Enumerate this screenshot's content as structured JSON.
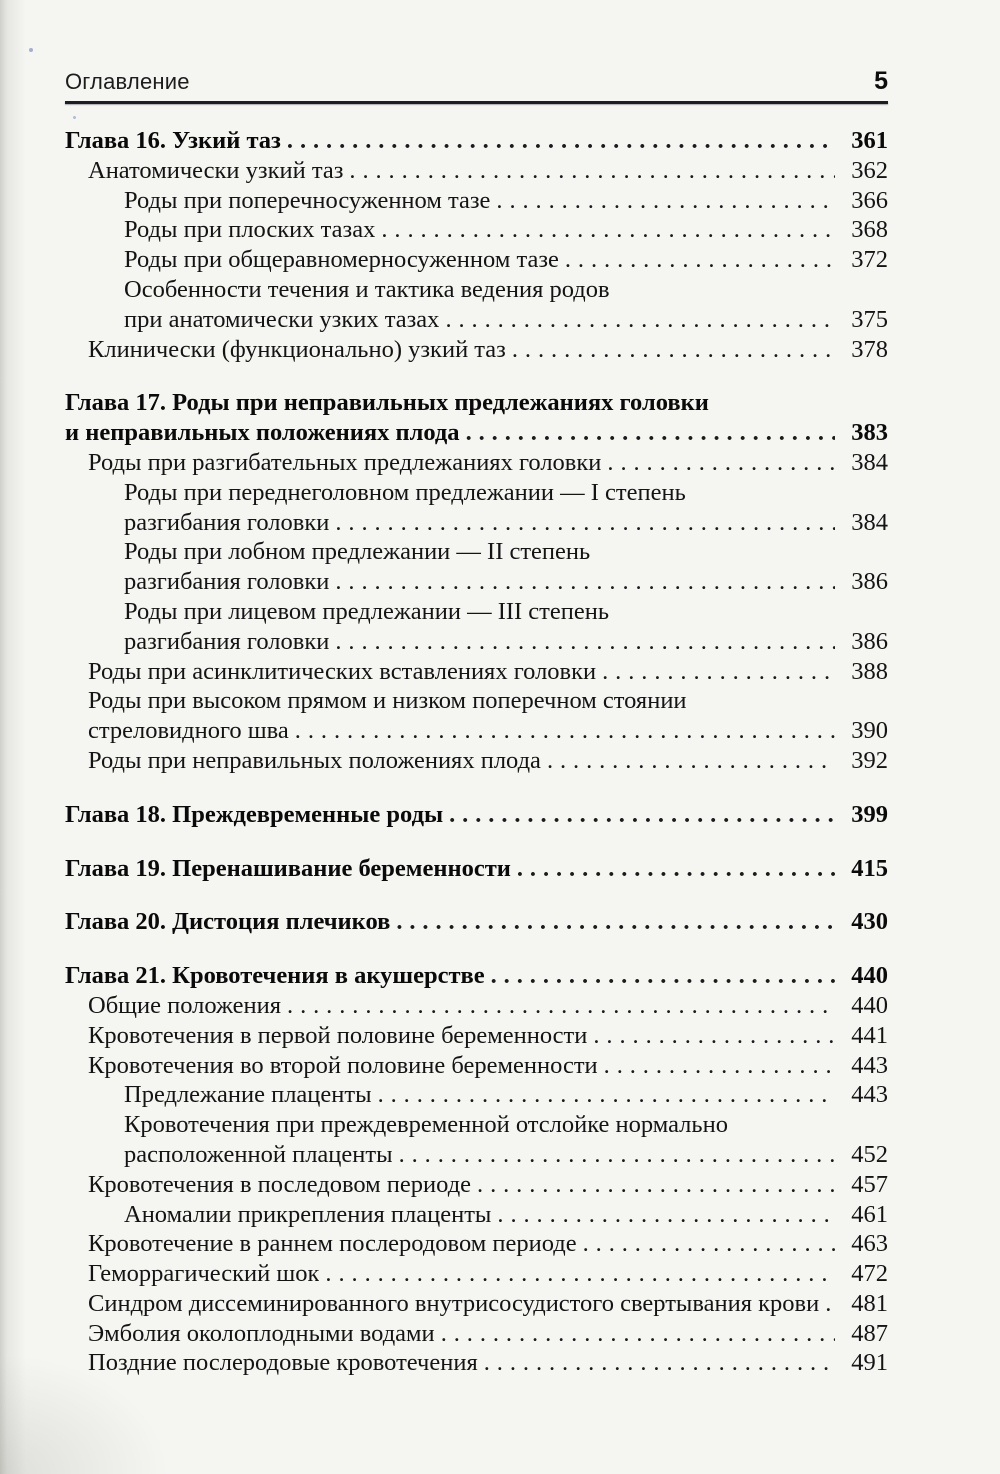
{
  "header": {
    "title": "Оглавление",
    "page_number": "5"
  },
  "toc": [
    {
      "level": 0,
      "bold": true,
      "gap": false,
      "lines": [
        "Глава 16. Узкий таз"
      ],
      "page": "361"
    },
    {
      "level": 1,
      "bold": false,
      "gap": false,
      "lines": [
        "Анатомически узкий таз"
      ],
      "page": "362"
    },
    {
      "level": 2,
      "bold": false,
      "gap": false,
      "lines": [
        "Роды при поперечносуженном тазе"
      ],
      "page": "366"
    },
    {
      "level": 2,
      "bold": false,
      "gap": false,
      "lines": [
        "Роды при плоских тазах"
      ],
      "page": "368"
    },
    {
      "level": 2,
      "bold": false,
      "gap": false,
      "lines": [
        "Роды при общеравномерносуженном тазе"
      ],
      "page": "372"
    },
    {
      "level": 2,
      "bold": false,
      "gap": false,
      "lines": [
        "Особенности течения и тактика ведения родов",
        "при анатомически узких тазах"
      ],
      "page": "375"
    },
    {
      "level": 1,
      "bold": false,
      "gap": false,
      "lines": [
        "Клинически (функционально) узкий таз"
      ],
      "page": "378"
    },
    {
      "level": 0,
      "bold": true,
      "gap": true,
      "lines": [
        "Глава 17. Роды при неправильных предлежаниях головки",
        "и неправильных положениях плода"
      ],
      "page": "383"
    },
    {
      "level": 1,
      "bold": false,
      "gap": false,
      "lines": [
        "Роды при разгибательных предлежаниях головки"
      ],
      "page": "384"
    },
    {
      "level": 2,
      "bold": false,
      "gap": false,
      "lines": [
        "Роды при переднеголовном предлежании — I степень",
        "разгибания головки"
      ],
      "page": "384"
    },
    {
      "level": 2,
      "bold": false,
      "gap": false,
      "lines": [
        "Роды при лобном предлежании — II степень",
        "разгибания головки"
      ],
      "page": "386"
    },
    {
      "level": 2,
      "bold": false,
      "gap": false,
      "lines": [
        "Роды при лицевом предлежании — III степень",
        "разгибания головки"
      ],
      "page": "386"
    },
    {
      "level": 1,
      "bold": false,
      "gap": false,
      "lines": [
        "Роды при асинклитических вставлениях головки"
      ],
      "page": "388"
    },
    {
      "level": 1,
      "bold": false,
      "gap": false,
      "lines": [
        "Роды при высоком прямом и низком поперечном стоянии",
        "стреловидного шва"
      ],
      "page": "390"
    },
    {
      "level": 1,
      "bold": false,
      "gap": false,
      "lines": [
        "Роды при неправильных положениях плода"
      ],
      "page": "392"
    },
    {
      "level": 0,
      "bold": true,
      "gap": true,
      "lines": [
        "Глава 18. Преждевременные роды"
      ],
      "page": "399"
    },
    {
      "level": 0,
      "bold": true,
      "gap": true,
      "lines": [
        "Глава 19. Перенашивание беременности"
      ],
      "page": "415"
    },
    {
      "level": 0,
      "bold": true,
      "gap": true,
      "lines": [
        "Глава 20. Дистоция плечиков"
      ],
      "page": "430"
    },
    {
      "level": 0,
      "bold": true,
      "gap": true,
      "lines": [
        "Глава 21. Кровотечения в акушерстве"
      ],
      "page": "440"
    },
    {
      "level": 1,
      "bold": false,
      "gap": false,
      "lines": [
        "Общие положения"
      ],
      "page": "440"
    },
    {
      "level": 1,
      "bold": false,
      "gap": false,
      "lines": [
        "Кровотечения в первой половине беременности"
      ],
      "page": "441"
    },
    {
      "level": 1,
      "bold": false,
      "gap": false,
      "lines": [
        "Кровотечения во второй половине беременности"
      ],
      "page": "443"
    },
    {
      "level": 2,
      "bold": false,
      "gap": false,
      "lines": [
        "Предлежание плаценты"
      ],
      "page": "443"
    },
    {
      "level": 2,
      "bold": false,
      "gap": false,
      "lines": [
        "Кровотечения при преждевременной отслойке нормально",
        "расположенной плаценты"
      ],
      "page": "452"
    },
    {
      "level": 1,
      "bold": false,
      "gap": false,
      "lines": [
        "Кровотечения в последовом периоде"
      ],
      "page": "457"
    },
    {
      "level": 2,
      "bold": false,
      "gap": false,
      "lines": [
        "Аномалии прикрепления плаценты"
      ],
      "page": "461"
    },
    {
      "level": 1,
      "bold": false,
      "gap": false,
      "lines": [
        "Кровотечение в раннем послеродовом периоде"
      ],
      "page": "463"
    },
    {
      "level": 1,
      "bold": false,
      "gap": false,
      "lines": [
        "Геморрагический шок"
      ],
      "page": "472"
    },
    {
      "level": 1,
      "bold": false,
      "gap": false,
      "lines": [
        "Синдром диссеминированного внутрисосудистого свертывания крови"
      ],
      "page": "481"
    },
    {
      "level": 1,
      "bold": false,
      "gap": false,
      "lines": [
        "Эмболия околоплодными водами"
      ],
      "page": "487"
    },
    {
      "level": 1,
      "bold": false,
      "gap": false,
      "lines": [
        "Поздние послеродовые кровотечения"
      ],
      "page": "491"
    }
  ]
}
